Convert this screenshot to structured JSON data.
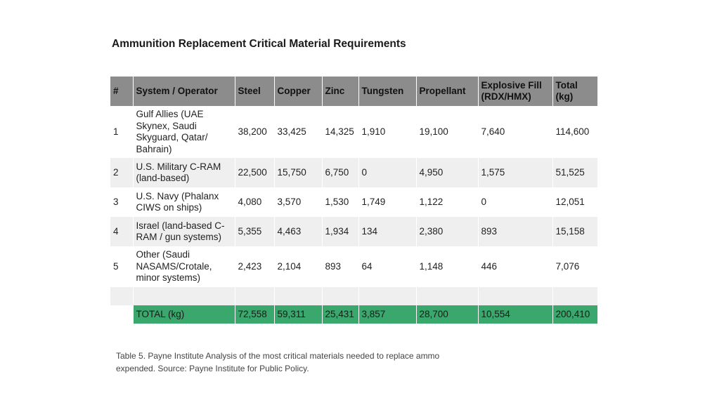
{
  "title": "Ammunition Replacement Critical Material Requirements",
  "table": {
    "headers": [
      "#",
      "System / Operator",
      "Steel",
      "Copper",
      "Zinc",
      "Tungsten",
      "Propellant",
      "Explosive Fill (RDX/HMX)",
      "Total (kg)"
    ],
    "rows": [
      [
        "1",
        "Gulf Allies (UAE Skynex, Saudi Skyguard, Qatar/ Bahrain)",
        "38,200",
        "33,425",
        "14,325",
        "1,910",
        "19,100",
        "7,640",
        "114,600"
      ],
      [
        "2",
        "U.S. Military C-RAM (land-based)",
        "22,500",
        "15,750",
        "6,750",
        "0",
        "4,950",
        "1,575",
        "51,525"
      ],
      [
        "3",
        "U.S. Navy (Phalanx CIWS on ships)",
        "4,080",
        "3,570",
        "1,530",
        "1,749",
        "1,122",
        "0",
        "12,051"
      ],
      [
        "4",
        "Israel (land-based C-RAM / gun systems)",
        "5,355",
        "4,463",
        "1,934",
        "134",
        "2,380",
        "893",
        "15,158"
      ],
      [
        "5",
        "Other (Saudi NASAMS/Crotale, minor systems)",
        "2,423",
        "2,104",
        "893",
        "64",
        "1,148",
        "446",
        "7,076"
      ]
    ],
    "total": [
      "",
      "TOTAL (kg)",
      "72,558",
      "59,311",
      "25,431",
      "3,857",
      "28,700",
      "10,554",
      "200,410"
    ]
  },
  "caption": "Table 5. Payne Institute Analysis of the most critical materials needed to replace ammo expended. Source: Payne Institute for Public Policy.",
  "colors": {
    "header_bg": "#8c8c8c",
    "stripe_bg": "#efefef",
    "total_bg": "#3aa76d"
  }
}
